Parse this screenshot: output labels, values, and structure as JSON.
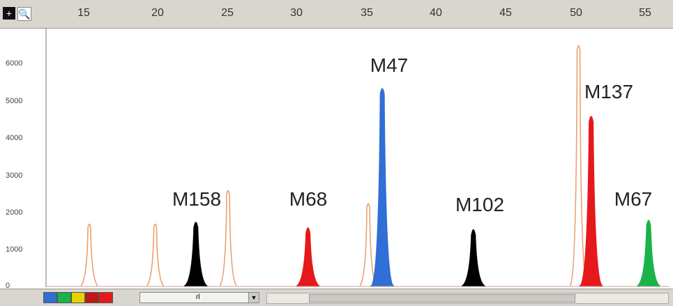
{
  "ruler": {
    "ticks": [
      "15",
      "20",
      "25",
      "30",
      "35",
      "40",
      "45",
      "50",
      "55"
    ]
  },
  "y_axis": {
    "labels": [
      "6000",
      "5000",
      "4000",
      "3000",
      "2000",
      "1000",
      "0"
    ]
  },
  "peaks": [
    {
      "label": "M158",
      "color": "#000000",
      "x_bp": 23.0,
      "height": 1750
    },
    {
      "label": "M68",
      "color": "#e5191b",
      "x_bp": 31.0,
      "height": 1600
    },
    {
      "label": "M47",
      "color": "#2f6fd6",
      "x_bp": 36.3,
      "height": 5350
    },
    {
      "label": "M102",
      "color": "#000000",
      "x_bp": 42.8,
      "height": 1550
    },
    {
      "label": "M137",
      "color": "#e5191b",
      "x_bp": 51.2,
      "height": 4600
    },
    {
      "label": "M67",
      "color": "#19b34a",
      "x_bp": 55.3,
      "height": 1800
    }
  ],
  "ladder_peaks": [
    {
      "x_bp": 15.4,
      "height": 1700
    },
    {
      "x_bp": 20.1,
      "height": 1700
    },
    {
      "x_bp": 25.3,
      "height": 2600
    },
    {
      "x_bp": 35.3,
      "height": 2250
    },
    {
      "x_bp": 50.3,
      "height": 6500
    }
  ],
  "ladder_color": "#e8a070",
  "dye_colors": [
    "#2f6fd6",
    "#19b34a",
    "#e6d200",
    "#e5191b",
    "#e5191b"
  ],
  "selector": {
    "value": "rl"
  }
}
